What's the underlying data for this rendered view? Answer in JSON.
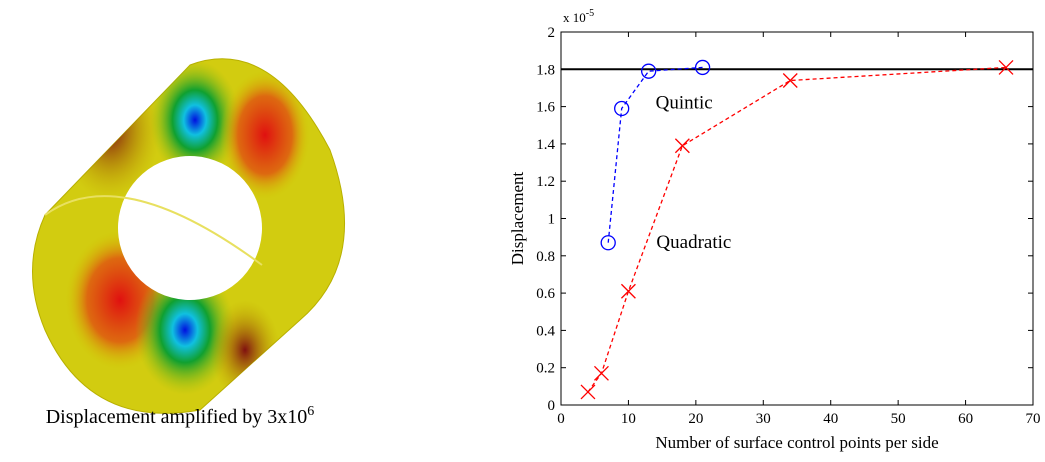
{
  "caption": {
    "text": "Displacement amplified by 3x10",
    "superscript": "6"
  },
  "chart_data": {
    "type": "line",
    "xlabel": "Number of surface control points per side",
    "ylabel": "Displacement",
    "y_multiplier": {
      "base": "x 10",
      "exponent": "-5"
    },
    "xlim": [
      0,
      70
    ],
    "ylim": [
      0,
      2
    ],
    "xticks": [
      0,
      10,
      20,
      30,
      40,
      50,
      60,
      70
    ],
    "yticks": [
      0,
      0.2,
      0.4,
      0.6,
      0.8,
      1,
      1.2,
      1.4,
      1.6,
      1.8,
      2
    ],
    "reference_line": {
      "value": 1.8,
      "color": "#000000"
    },
    "series": [
      {
        "name": "Quintic",
        "color": "#0000ff",
        "marker": "o",
        "x": [
          7,
          9,
          13,
          21
        ],
        "values": [
          0.87,
          1.59,
          1.79,
          1.81
        ]
      },
      {
        "name": "Quadratic",
        "color": "#ff0000",
        "marker": "x",
        "x": [
          4,
          6,
          10,
          18,
          34,
          66
        ],
        "values": [
          0.07,
          0.17,
          0.61,
          1.39,
          1.74,
          1.81
        ]
      }
    ]
  }
}
